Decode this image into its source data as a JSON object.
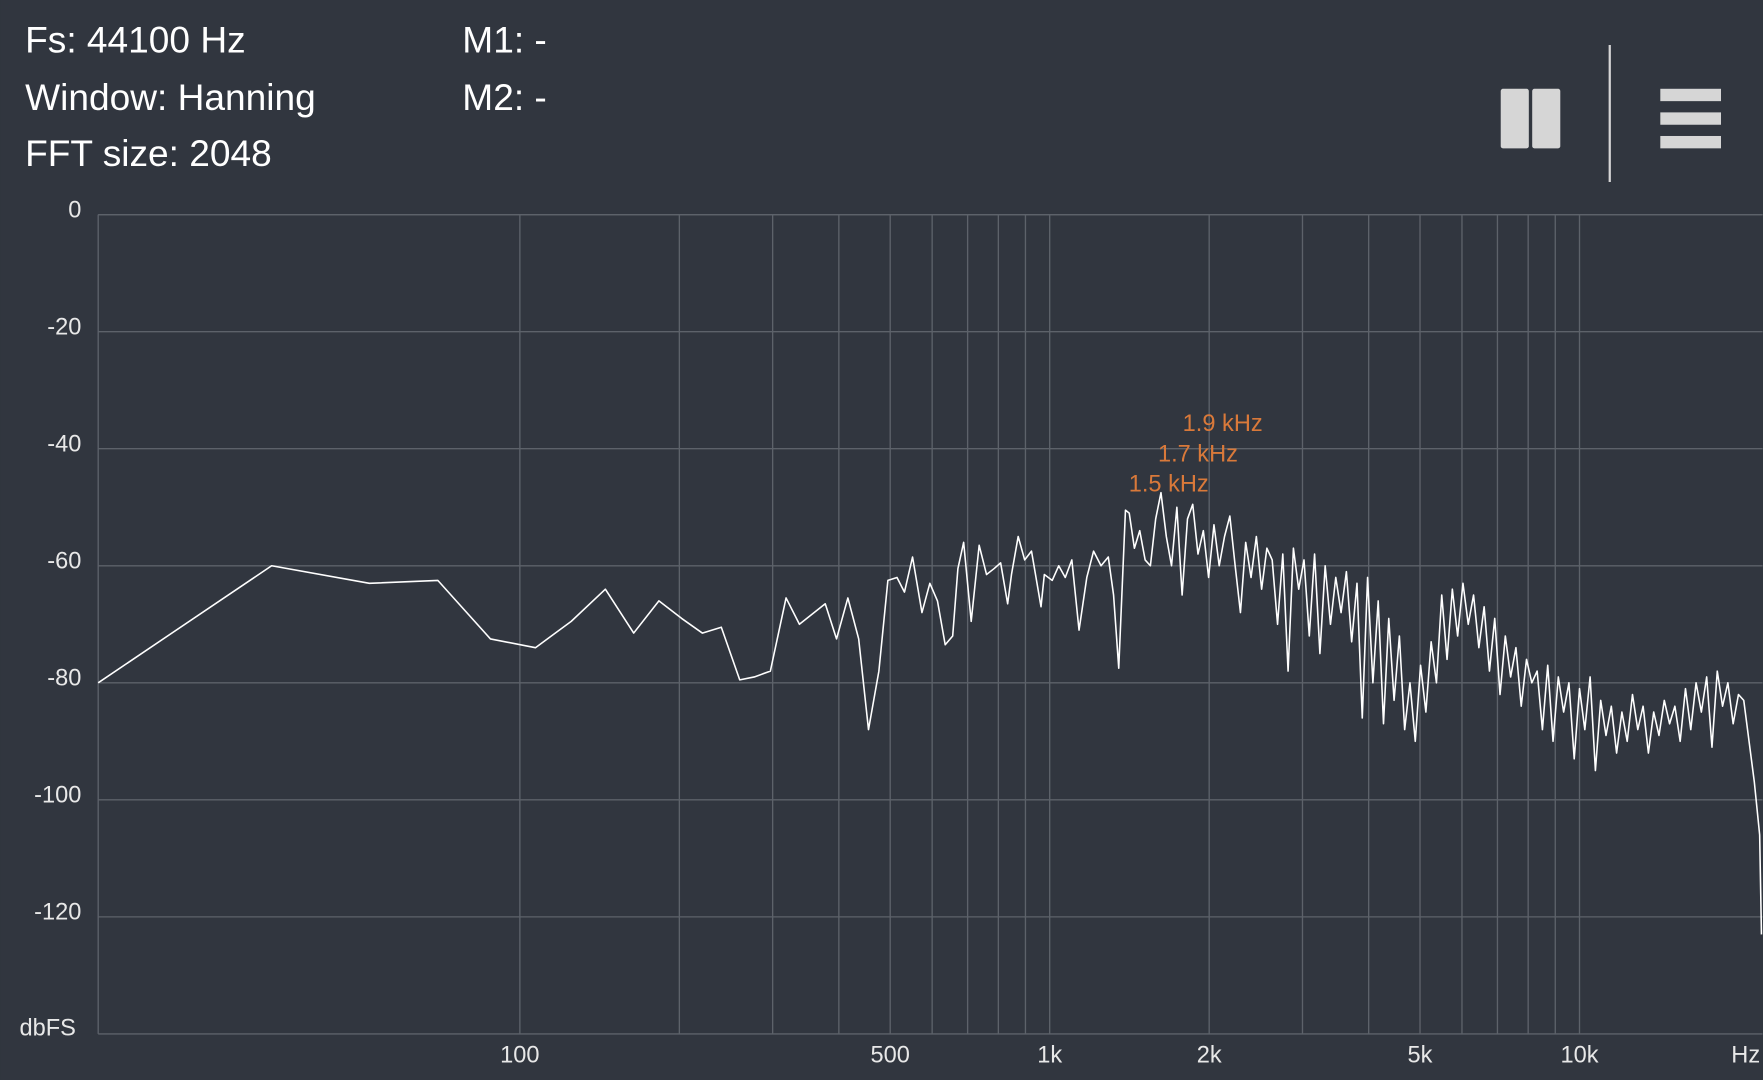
{
  "header": {
    "fs": "Fs: 44100 Hz",
    "window": "Window: Hanning",
    "fft_size": "FFT size: 2048",
    "m1": "M1: -",
    "m2": "M2: -"
  },
  "chart_data": {
    "type": "line",
    "xlog": true,
    "grid": true,
    "xlabel": "Hz",
    "ylabel": "dbFS",
    "annotations": [
      "1.9  kHz",
      "1.7  kHz",
      "1.5  kHz"
    ],
    "xlim": [
      16,
      22050
    ],
    "xticks": [
      100,
      500,
      {
        "value": 1000,
        "label": "1k"
      },
      {
        "value": 2000,
        "label": "2k"
      },
      {
        "value": 5000,
        "label": "5k"
      },
      {
        "value": 10000,
        "label": "10k"
      }
    ],
    "xgrid": [
      200,
      300,
      400,
      600,
      700,
      800,
      900,
      3000,
      4000,
      6000,
      7000,
      8000,
      9000
    ],
    "ylim": [
      -140,
      0
    ],
    "yticks": [
      0,
      -20,
      -40,
      -60,
      -80,
      -100,
      -120
    ],
    "x": [
      16,
      34,
      52,
      70,
      88,
      107,
      125,
      145,
      164,
      183,
      202,
      221,
      240,
      260,
      277,
      297,
      318,
      337,
      377,
      396,
      416,
      436,
      455,
      476,
      495,
      515,
      532,
      551,
      574,
      594,
      614,
      635,
      656,
      671,
      688,
      711,
      736,
      760,
      785,
      808,
      833,
      847,
      872,
      897,
      924,
      963,
      977,
      1011,
      1040,
      1070,
      1101,
      1136,
      1175,
      1210,
      1250,
      1290,
      1320,
      1350,
      1390,
      1413,
      1445,
      1479,
      1514,
      1549,
      1585,
      1622,
      1660,
      1698,
      1738,
      1778,
      1820,
      1862,
      1905,
      1950,
      1995,
      2042,
      2089,
      2138,
      2188,
      2239,
      2291,
      2344,
      2399,
      2455,
      2512,
      2570,
      2630,
      2692,
      2754,
      2818,
      2884,
      2951,
      3020,
      3090,
      3162,
      3236,
      3311,
      3388,
      3467,
      3548,
      3631,
      3715,
      3802,
      3890,
      3981,
      4074,
      4169,
      4266,
      4365,
      4467,
      4571,
      4677,
      4786,
      4898,
      5012,
      5129,
      5248,
      5370,
      5495,
      5623,
      5754,
      5888,
      6026,
      6166,
      6310,
      6457,
      6607,
      6761,
      6918,
      7079,
      7244,
      7413,
      7586,
      7762,
      7943,
      8128,
      8318,
      8511,
      8710,
      8913,
      9120,
      9333,
      9550,
      9772,
      10000,
      10233,
      10471,
      10715,
      10965,
      11220,
      11482,
      11749,
      12023,
      12303,
      12589,
      12882,
      13183,
      13490,
      13804,
      14125,
      14454,
      14791,
      15136,
      15488,
      15849,
      16218,
      16596,
      16982,
      17378,
      17783,
      18197,
      18621,
      19055,
      19498,
      19953,
      20417,
      20893,
      21380,
      21878,
      22050
    ],
    "series": [
      {
        "color": "#ffffff",
        "values": [
          -80,
          -60,
          -63,
          -62.5,
          -72.5,
          -74,
          -69.5,
          -64,
          -71.5,
          -66,
          -69,
          -71.5,
          -70.5,
          -79.5,
          -79,
          -78,
          -65.5,
          -70,
          -66.5,
          -72.5,
          -65.5,
          -72.5,
          -88,
          -78,
          -62.5,
          -62,
          -64.5,
          -58.5,
          -68,
          -63,
          -66,
          -73.5,
          -72,
          -60.5,
          -56,
          -69.5,
          -56.5,
          -61.5,
          -60.5,
          -59.5,
          -66.5,
          -61.5,
          -55,
          -59,
          -57.5,
          -67,
          -61.5,
          -62.5,
          -60,
          -62,
          -59,
          -71,
          -62,
          -57.5,
          -60,
          -58.5,
          -65,
          -77.5,
          -50.5,
          -51,
          -57,
          -54,
          -59,
          -60,
          -52,
          -47.5,
          -55,
          -60,
          -50,
          -65,
          -52,
          -49.5,
          -58,
          -54,
          -62,
          -53,
          -60,
          -55,
          -51.5,
          -60,
          -68,
          -56,
          -62,
          -55,
          -64,
          -57,
          -59,
          -70,
          -58,
          -78,
          -57,
          -64,
          -59,
          -72,
          -58,
          -75,
          -60,
          -70,
          -62,
          -68,
          -61,
          -73,
          -63,
          -86,
          -62,
          -80,
          -66,
          -87,
          -69,
          -83,
          -72,
          -88,
          -80,
          -90,
          -77,
          -85,
          -73,
          -80,
          -65,
          -76,
          -64,
          -72,
          -63,
          -70,
          -65,
          -74,
          -67,
          -78,
          -69,
          -82,
          -72,
          -79,
          -74,
          -84,
          -76,
          -80,
          -78,
          -88,
          -77,
          -90,
          -79,
          -85,
          -80,
          -93,
          -81,
          -88,
          -79,
          -95,
          -83,
          -89,
          -84,
          -92,
          -85,
          -90,
          -82,
          -88,
          -84,
          -92,
          -85,
          -89,
          -83,
          -87,
          -84,
          -90,
          -81,
          -88,
          -80,
          -85,
          -79,
          -91,
          -78,
          -84,
          -80,
          -87,
          -82,
          -83,
          -90,
          -97,
          -106,
          -123
        ]
      }
    ]
  }
}
